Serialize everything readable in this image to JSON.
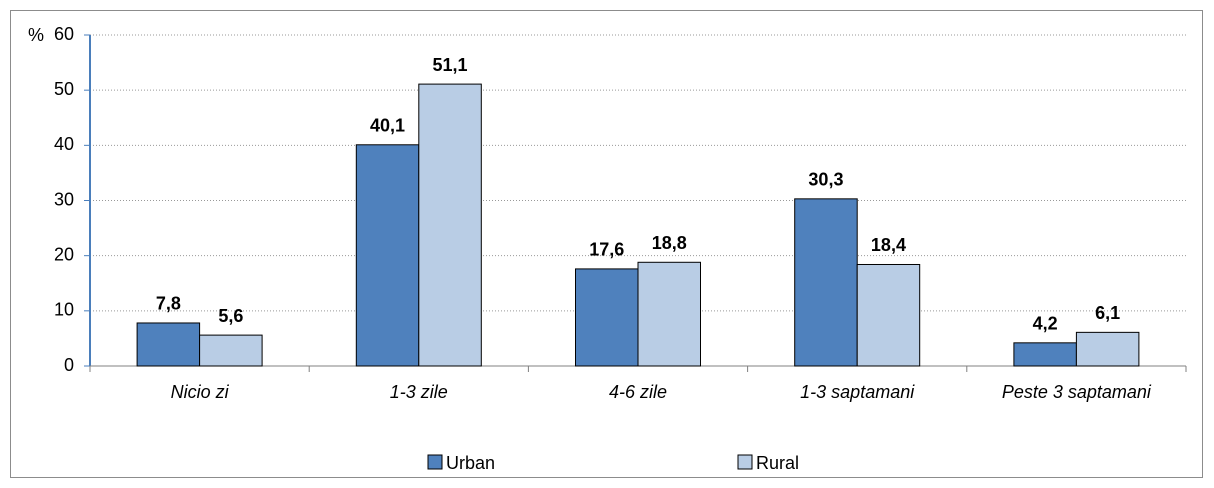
{
  "chart_data": {
    "type": "bar",
    "y_label": "%",
    "categories": [
      "Nicio zi",
      "1-3 zile",
      "4-6 zile",
      "1-3 saptamani",
      "Peste 3 saptamani"
    ],
    "series": [
      {
        "name": "Urban",
        "color": "#4f81bd",
        "values": [
          7.8,
          40.1,
          17.6,
          30.3,
          4.2
        ],
        "value_labels": [
          "7,8",
          "40,1",
          "17,6",
          "30,3",
          "4,2"
        ]
      },
      {
        "name": "Rural",
        "color": "#b9cde5",
        "values": [
          5.6,
          51.1,
          18.8,
          18.4,
          6.1
        ],
        "value_labels": [
          "5,6",
          "51,1",
          "18,8",
          "18,4",
          "6,1"
        ]
      }
    ],
    "ylim": [
      0,
      60
    ],
    "yticks": [
      0,
      10,
      20,
      30,
      40,
      50,
      60
    ],
    "grid": true,
    "legend": "bottom"
  }
}
